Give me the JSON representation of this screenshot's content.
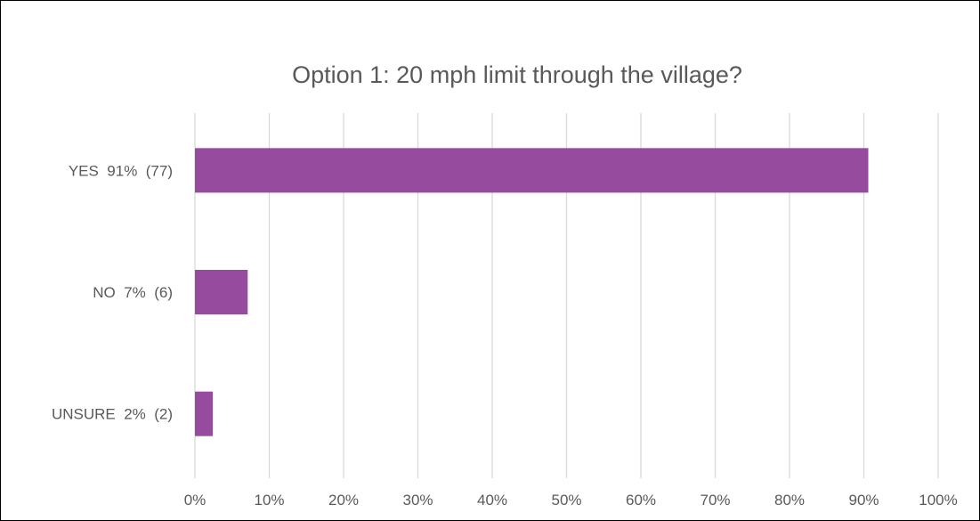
{
  "chart_data": {
    "type": "bar",
    "orientation": "horizontal",
    "title": "Option 1:  20 mph limit through the village?",
    "categories": [
      "YES  91%  (77)",
      "NO  7%  (6)",
      "UNSURE  2%  (2)"
    ],
    "values": [
      90.6,
      7.1,
      2.4
    ],
    "value_unit": "%",
    "xlim": [
      0,
      100
    ],
    "x_ticks": [
      "0%",
      "10%",
      "20%",
      "30%",
      "40%",
      "50%",
      "60%",
      "70%",
      "80%",
      "90%",
      "100%"
    ],
    "x_tick_values": [
      0,
      10,
      20,
      30,
      40,
      50,
      60,
      70,
      80,
      90,
      100
    ],
    "xlabel": "",
    "ylabel": "",
    "grid": "vertical",
    "legend": "none",
    "bar_color": "#964B9E"
  }
}
